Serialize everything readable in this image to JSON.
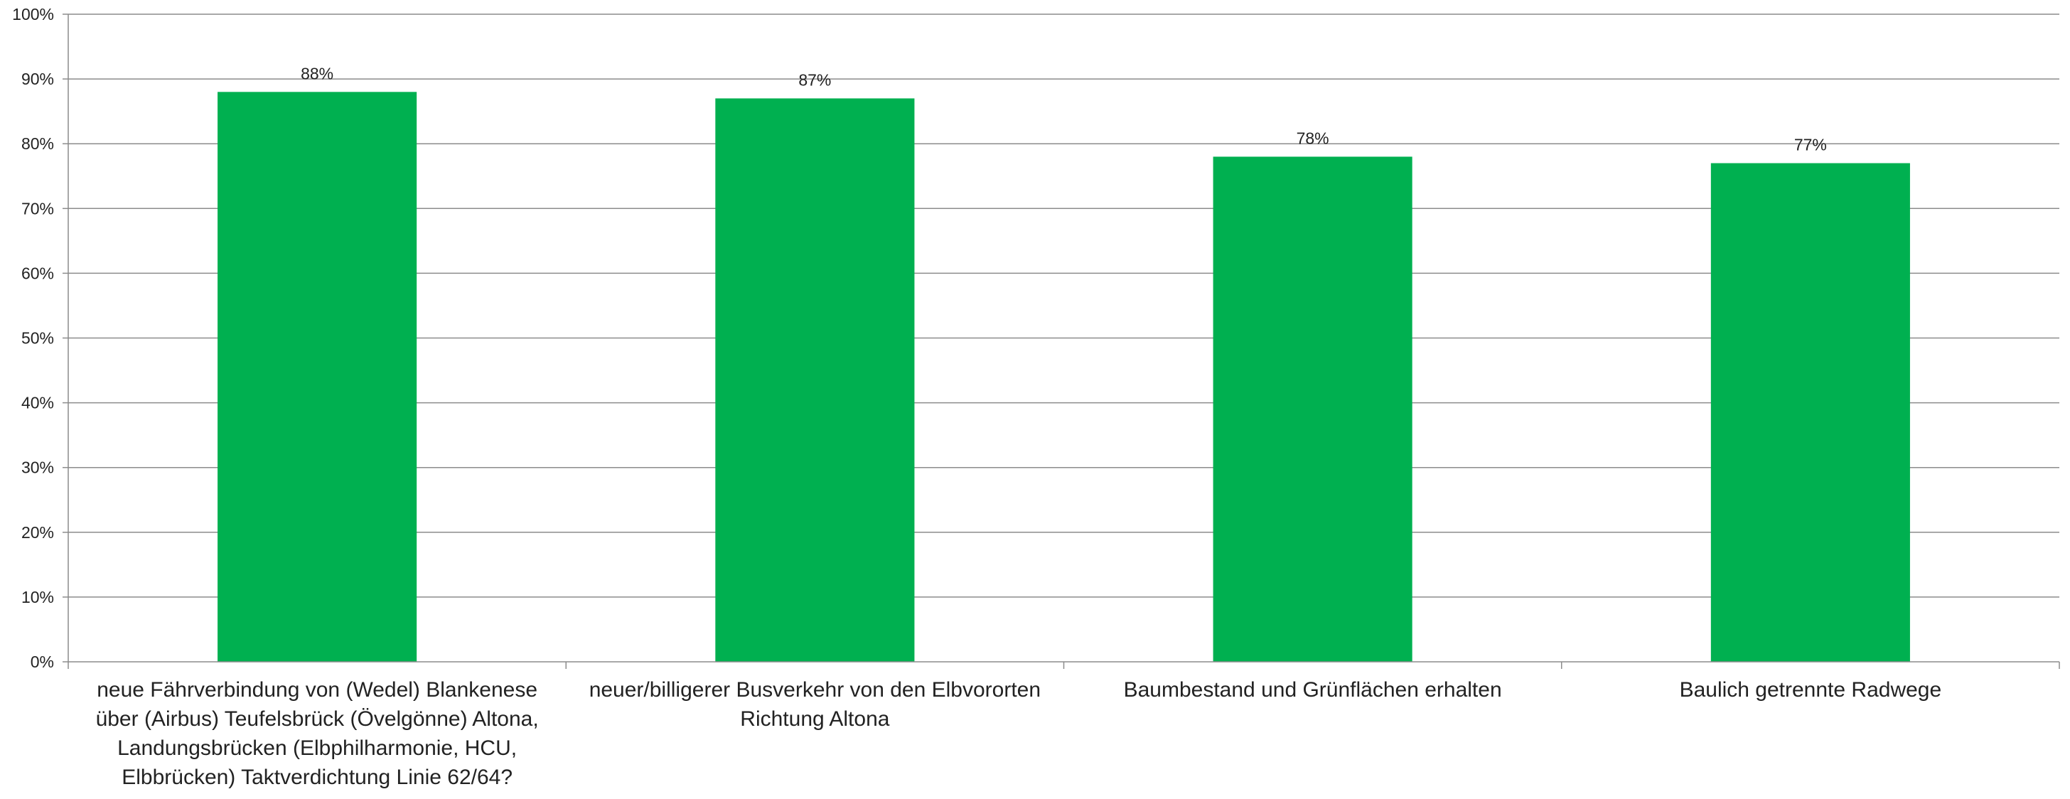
{
  "chart_data": {
    "type": "bar",
    "title": "",
    "xlabel": "",
    "ylabel": "",
    "ylim": [
      0,
      100
    ],
    "y_ticks": [
      "0%",
      "10%",
      "20%",
      "30%",
      "40%",
      "50%",
      "60%",
      "70%",
      "80%",
      "90%",
      "100%"
    ],
    "y_tick_values": [
      0,
      10,
      20,
      30,
      40,
      50,
      60,
      70,
      80,
      90,
      100
    ],
    "grid": true,
    "legend": "none",
    "bar_color": "#00B050",
    "categories": [
      [
        "neue Fährverbindung von (Wedel) Blankenese",
        "über (Airbus) Teufelsbrück (Övelgönne) Altona,",
        "Landungsbrücken (Elbphilharmonie, HCU,",
        "Elbbrücken) Taktverdichtung Linie 62/64?"
      ],
      [
        "neuer/billigerer Busverkehr von den Elbvororten",
        "Richtung Altona"
      ],
      [
        "Baumbestand und Grünflächen erhalten"
      ],
      [
        "Baulich getrennte Radwege"
      ]
    ],
    "values": [
      88,
      87,
      78,
      77
    ],
    "data_labels": [
      "88%",
      "87%",
      "78%",
      "77%"
    ]
  }
}
